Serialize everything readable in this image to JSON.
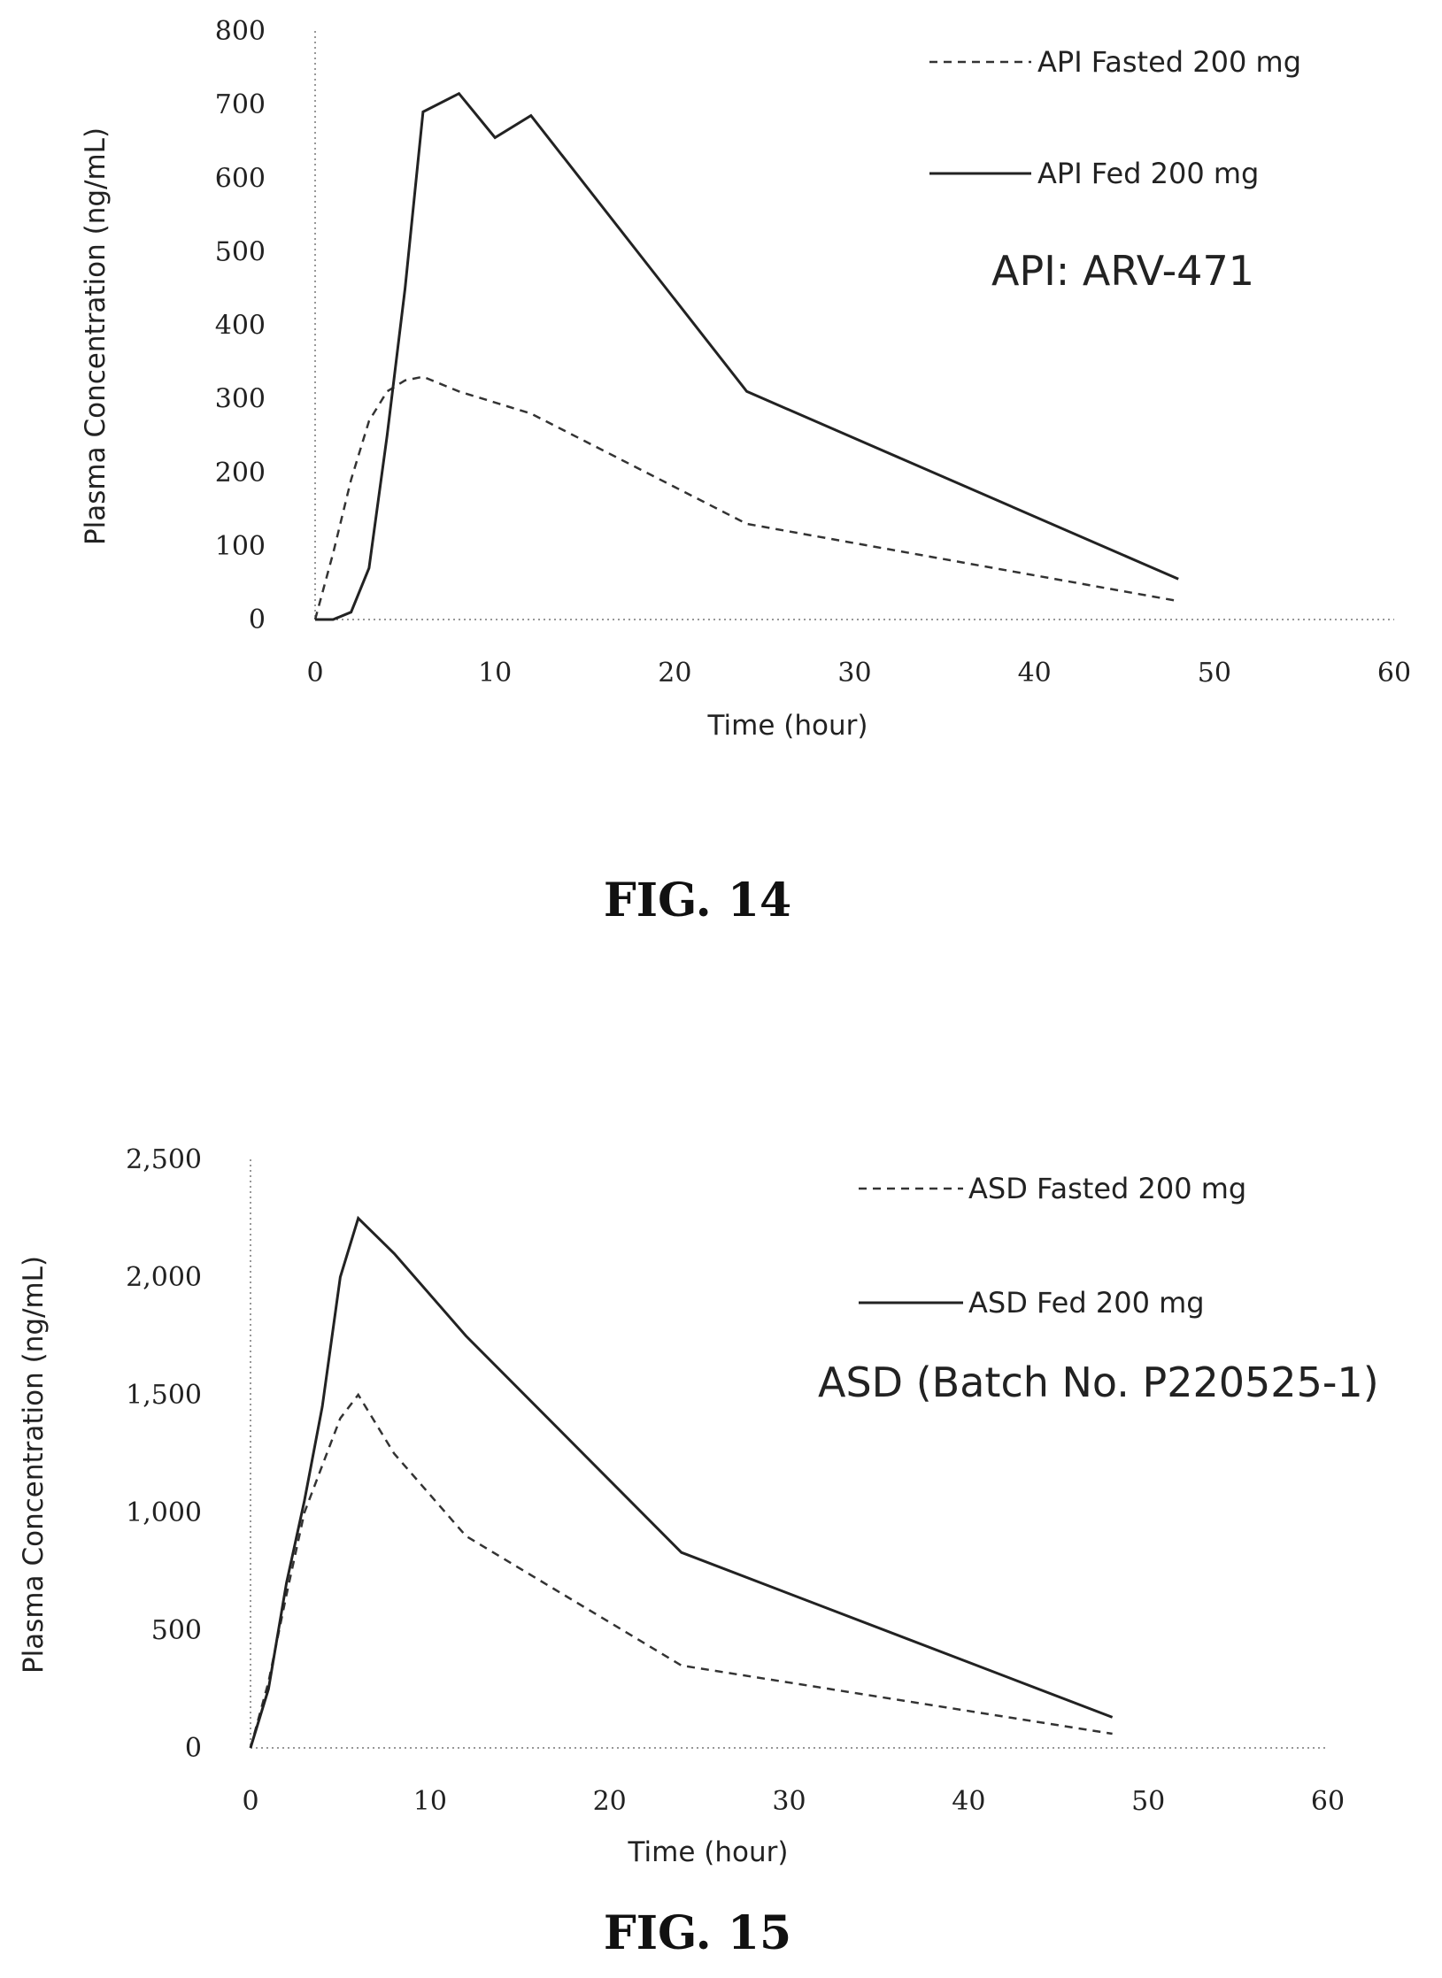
{
  "chart_data": [
    {
      "type": "line",
      "title": "",
      "xlabel": "Time (hour)",
      "ylabel": "Plasma Concentration (ng/mL)",
      "xlim": [
        0,
        60
      ],
      "ylim": [
        0,
        800
      ],
      "x_ticks": [
        "0",
        "10",
        "20",
        "30",
        "40",
        "50",
        "60"
      ],
      "y_ticks": [
        "0",
        "100",
        "200",
        "300",
        "400",
        "500",
        "600",
        "700",
        "800"
      ],
      "annotation": "API: ARV-471",
      "caption": "FIG. 14",
      "series": [
        {
          "name": "API Fasted 200 mg",
          "style": "dashed",
          "x": [
            0,
            1,
            2,
            3,
            4,
            5,
            6,
            8,
            12,
            24,
            48
          ],
          "y": [
            0,
            90,
            190,
            270,
            310,
            325,
            330,
            310,
            280,
            130,
            25
          ]
        },
        {
          "name": "API Fed 200 mg",
          "style": "solid",
          "x": [
            0,
            1,
            2,
            3,
            4,
            5,
            6,
            8,
            10,
            12,
            24,
            48
          ],
          "y": [
            0,
            0,
            10,
            70,
            250,
            450,
            690,
            715,
            655,
            685,
            310,
            55
          ]
        }
      ]
    },
    {
      "type": "line",
      "title": "",
      "xlabel": "Time (hour)",
      "ylabel": "Plasma Concentration (ng/mL)",
      "xlim": [
        0,
        60
      ],
      "ylim": [
        0,
        2500
      ],
      "x_ticks": [
        "0",
        "10",
        "20",
        "30",
        "40",
        "50",
        "60"
      ],
      "y_ticks": [
        "0",
        "500",
        "1,000",
        "1,500",
        "2,000",
        "2,500"
      ],
      "annotation": "ASD (Batch No. P220525-1)",
      "caption": "FIG. 15",
      "series": [
        {
          "name": "ASD Fasted 200 mg",
          "style": "dashed",
          "x": [
            0,
            1,
            2,
            3,
            4,
            5,
            6,
            8,
            12,
            24,
            48
          ],
          "y": [
            0,
            280,
            650,
            1000,
            1200,
            1400,
            1500,
            1250,
            900,
            350,
            60
          ]
        },
        {
          "name": "ASD Fed 200 mg",
          "style": "solid",
          "x": [
            0,
            1,
            2,
            3,
            4,
            5,
            6,
            8,
            12,
            24,
            48
          ],
          "y": [
            0,
            250,
            700,
            1050,
            1450,
            2000,
            2250,
            2100,
            1750,
            830,
            130
          ]
        }
      ]
    }
  ]
}
